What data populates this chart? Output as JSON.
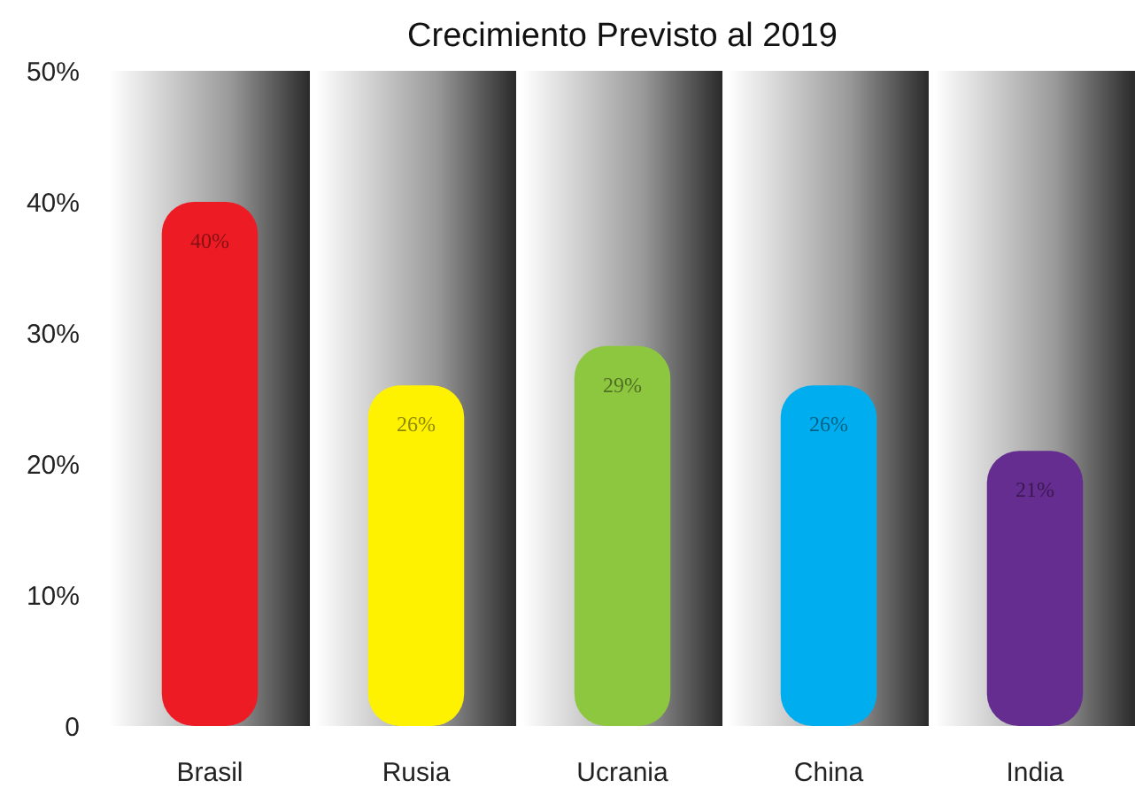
{
  "chart_data": {
    "type": "bar",
    "title": "Crecimiento Previsto al 2019",
    "categories": [
      "Brasil",
      "Rusia",
      "Ucrania",
      "China",
      "India"
    ],
    "values": [
      40,
      26,
      29,
      26,
      21
    ],
    "colors": [
      "#ed1c24",
      "#fff200",
      "#8dc63f",
      "#00aeef",
      "#662d91"
    ],
    "value_labels": [
      "40%",
      "26%",
      "29%",
      "26%",
      "21%"
    ],
    "ylim": [
      0,
      50
    ],
    "yticks": [
      0,
      {
        "value": 10,
        "label": "10%"
      },
      {
        "value": 20,
        "label": "20%"
      },
      {
        "value": 30,
        "label": "30%"
      },
      {
        "value": 40,
        "label": "40%"
      },
      {
        "value": 50,
        "label": "50%"
      }
    ],
    "grid": false
  }
}
